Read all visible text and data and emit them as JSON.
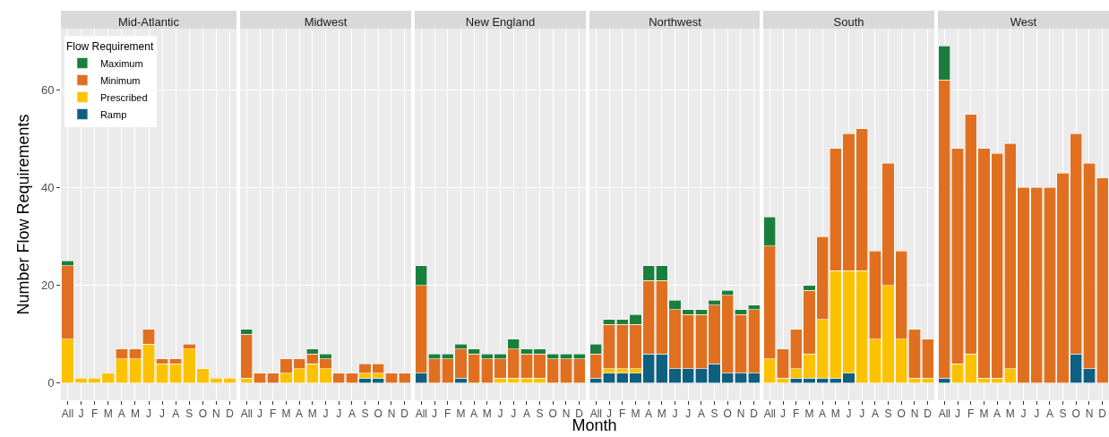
{
  "chart_data": [
    {
      "type": "bar",
      "stacked": true,
      "title": "Mid-Atlantic",
      "ylabel": "Number Flow Requirements",
      "legend_title": "Flow Requirement",
      "legend": "top left",
      "grid": true,
      "ylim": [
        -3.5,
        72.5
      ],
      "yticks": [
        0,
        20,
        40,
        60
      ],
      "categories": [
        "All",
        "J",
        "F",
        "M",
        "A",
        "M",
        "J",
        "J",
        "A",
        "S",
        "O",
        "N",
        "D"
      ],
      "series": [
        {
          "name": "Ramp",
          "color": "#0e5f80",
          "values": [
            null,
            null,
            null,
            null,
            null,
            null,
            null,
            null,
            null,
            null,
            null,
            null,
            null
          ]
        },
        {
          "name": "Prescribed",
          "color": "#fcc200",
          "values": [
            9,
            1,
            1,
            2,
            5,
            5,
            8,
            4,
            4,
            7,
            3,
            1,
            1
          ]
        },
        {
          "name": "Minimum",
          "color": "#e07020",
          "values": [
            15,
            null,
            null,
            null,
            2,
            2,
            3,
            1,
            1,
            1,
            null,
            null,
            null
          ]
        },
        {
          "name": "Maximum",
          "color": "#1a7f3c",
          "values": [
            1,
            null,
            null,
            null,
            null,
            null,
            null,
            null,
            null,
            null,
            null,
            null,
            null
          ]
        }
      ]
    },
    {
      "type": "bar",
      "stacked": true,
      "title": "Midwest",
      "grid": true,
      "tick_labels": "x",
      "ylim": [
        -3.5,
        72.5
      ],
      "yticks": [
        0,
        20,
        40,
        60
      ],
      "categories": [
        "All",
        "J",
        "F",
        "M",
        "A",
        "M",
        "J",
        "J",
        "A",
        "S",
        "O",
        "N",
        "D"
      ],
      "series": [
        {
          "color": "#0e5f80",
          "values": [
            null,
            null,
            null,
            null,
            null,
            null,
            null,
            null,
            null,
            1,
            1,
            null,
            null
          ]
        },
        {
          "color": "#fcc200",
          "values": [
            1,
            null,
            null,
            2,
            3,
            4,
            3,
            null,
            null,
            1,
            1,
            null,
            null
          ]
        },
        {
          "color": "#e07020",
          "values": [
            9,
            2,
            2,
            3,
            2,
            2,
            2,
            2,
            2,
            2,
            2,
            2,
            2
          ]
        },
        {
          "color": "#1a7f3c",
          "values": [
            1,
            null,
            null,
            null,
            null,
            1,
            1,
            null,
            null,
            null,
            null,
            null,
            null
          ]
        }
      ]
    },
    {
      "type": "bar",
      "stacked": true,
      "title": "New England",
      "grid": true,
      "tick_labels": "x",
      "ylim": [
        -3.5,
        72.5
      ],
      "yticks": [
        0,
        20,
        40,
        60
      ],
      "categories": [
        "All",
        "J",
        "F",
        "M",
        "A",
        "M",
        "J",
        "J",
        "A",
        "S",
        "O",
        "N",
        "D"
      ],
      "series": [
        {
          "color": "#0e5f80",
          "values": [
            2,
            null,
            null,
            1,
            null,
            null,
            null,
            null,
            null,
            null,
            null,
            null,
            null
          ]
        },
        {
          "color": "#fcc200",
          "values": [
            null,
            null,
            null,
            null,
            null,
            null,
            1,
            1,
            1,
            1,
            null,
            null,
            null
          ]
        },
        {
          "color": "#e07020",
          "values": [
            18,
            5,
            5,
            6,
            6,
            5,
            4,
            6,
            5,
            5,
            5,
            5,
            5
          ]
        },
        {
          "color": "#1a7f3c",
          "values": [
            4,
            1,
            1,
            1,
            1,
            1,
            1,
            2,
            1,
            1,
            1,
            1,
            1
          ]
        }
      ]
    },
    {
      "type": "bar",
      "stacked": true,
      "title": "Northwest",
      "xlabel": "Month",
      "grid": true,
      "tick_labels": "x",
      "ylim": [
        -3.5,
        72.5
      ],
      "yticks": [
        0,
        20,
        40,
        60
      ],
      "categories": [
        "All",
        "J",
        "F",
        "M",
        "A",
        "M",
        "J",
        "J",
        "A",
        "S",
        "O",
        "N",
        "D"
      ],
      "series": [
        {
          "color": "#0e5f80",
          "values": [
            1,
            2,
            2,
            2,
            6,
            6,
            3,
            3,
            3,
            4,
            2,
            2,
            2
          ]
        },
        {
          "color": "#fcc200",
          "values": [
            null,
            1,
            1,
            1,
            null,
            null,
            null,
            null,
            null,
            null,
            null,
            null,
            null
          ]
        },
        {
          "color": "#e07020",
          "values": [
            5,
            9,
            9,
            9,
            15,
            15,
            12,
            11,
            11,
            12,
            16,
            12,
            13
          ]
        },
        {
          "color": "#1a7f3c",
          "values": [
            2,
            1,
            1,
            2,
            3,
            3,
            2,
            1,
            1,
            1,
            1,
            1,
            1
          ]
        }
      ]
    },
    {
      "type": "bar",
      "stacked": true,
      "title": "South",
      "grid": true,
      "tick_labels": "x",
      "ylim": [
        -3.5,
        72.5
      ],
      "yticks": [
        0,
        20,
        40,
        60
      ],
      "categories": [
        "All",
        "J",
        "F",
        "M",
        "A",
        "M",
        "J",
        "J",
        "A",
        "S",
        "O",
        "N",
        "D"
      ],
      "series": [
        {
          "color": "#0e5f80",
          "values": [
            null,
            null,
            1,
            1,
            1,
            1,
            2,
            null,
            null,
            null,
            null,
            null,
            null
          ]
        },
        {
          "color": "#fcc200",
          "values": [
            5,
            1,
            2,
            5,
            12,
            22,
            21,
            23,
            9,
            20,
            9,
            1,
            1
          ]
        },
        {
          "color": "#e07020",
          "values": [
            23,
            6,
            8,
            13,
            17,
            25,
            28,
            29,
            18,
            25,
            18,
            10,
            8
          ]
        },
        {
          "color": "#1a7f3c",
          "values": [
            6,
            null,
            null,
            1,
            null,
            null,
            null,
            null,
            null,
            null,
            null,
            null,
            null
          ]
        }
      ]
    },
    {
      "type": "bar",
      "stacked": true,
      "title": "West",
      "grid": true,
      "tick_labels": "x",
      "ylim": [
        -3.5,
        72.5
      ],
      "yticks": [
        0,
        20,
        40,
        60
      ],
      "categories": [
        "All",
        "J",
        "F",
        "M",
        "A",
        "M",
        "J",
        "J",
        "A",
        "S",
        "O",
        "N",
        "D"
      ],
      "series": [
        {
          "color": "#0e5f80",
          "values": [
            1,
            null,
            null,
            null,
            null,
            null,
            null,
            null,
            null,
            null,
            6,
            3,
            null
          ]
        },
        {
          "color": "#fcc200",
          "values": [
            null,
            4,
            6,
            1,
            1,
            3,
            null,
            null,
            null,
            null,
            null,
            null,
            null
          ]
        },
        {
          "color": "#e07020",
          "values": [
            61,
            44,
            49,
            47,
            46,
            46,
            40,
            40,
            40,
            43,
            45,
            42,
            42
          ]
        },
        {
          "color": "#1a7f3c",
          "values": [
            7,
            null,
            null,
            null,
            null,
            null,
            null,
            null,
            null,
            null,
            null,
            null,
            null
          ]
        }
      ]
    }
  ]
}
